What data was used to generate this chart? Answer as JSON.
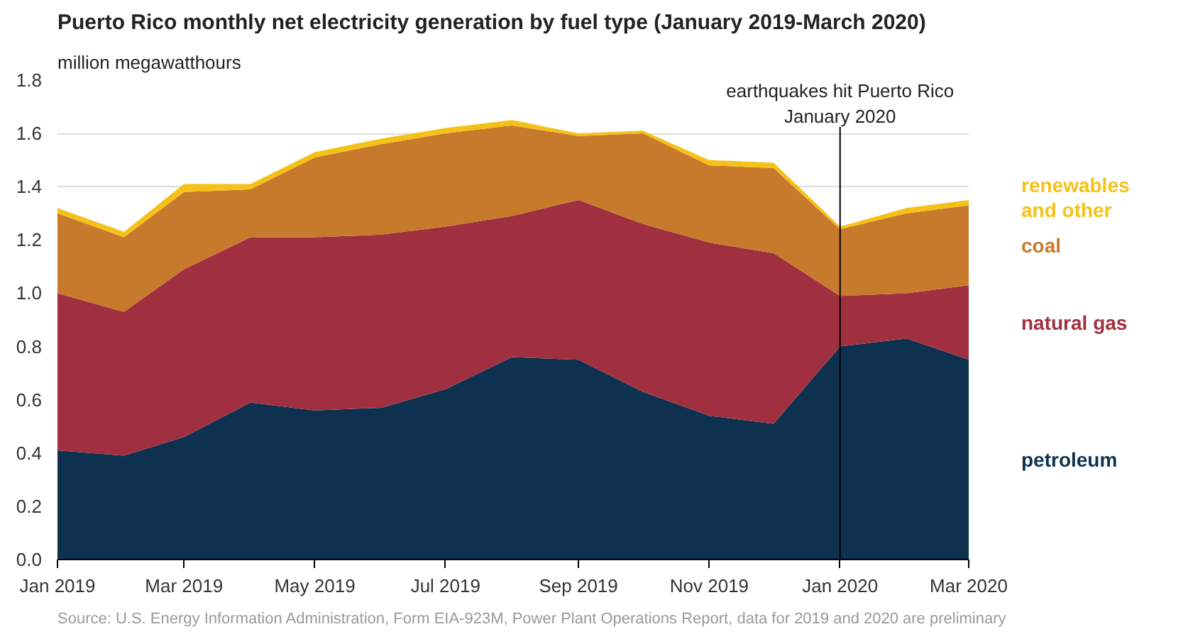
{
  "chart_data": {
    "type": "area",
    "stacked": true,
    "title": "Puerto Rico monthly net electricity generation by fuel type (January 2019-March 2020)",
    "ylabel": "million megawatthours",
    "x": [
      "2019-01",
      "2019-02",
      "2019-03",
      "2019-04",
      "2019-05",
      "2019-06",
      "2019-07",
      "2019-08",
      "2019-09",
      "2019-10",
      "2019-11",
      "2019-12",
      "2020-01",
      "2020-02",
      "2020-03"
    ],
    "series": [
      {
        "name": "petroleum",
        "color": "#0e3150",
        "values": [
          0.41,
          0.39,
          0.46,
          0.59,
          0.56,
          0.57,
          0.64,
          0.76,
          0.75,
          0.63,
          0.54,
          0.51,
          0.8,
          0.83,
          0.75
        ]
      },
      {
        "name": "natural gas",
        "color": "#a0303f",
        "values": [
          0.59,
          0.54,
          0.63,
          0.62,
          0.65,
          0.65,
          0.61,
          0.53,
          0.6,
          0.63,
          0.65,
          0.64,
          0.19,
          0.17,
          0.28
        ]
      },
      {
        "name": "coal",
        "color": "#c87a2c",
        "values": [
          0.3,
          0.28,
          0.29,
          0.18,
          0.3,
          0.34,
          0.35,
          0.34,
          0.24,
          0.34,
          0.29,
          0.32,
          0.25,
          0.3,
          0.3
        ]
      },
      {
        "name": "renewables and other",
        "color": "#f5c117",
        "values": [
          0.02,
          0.02,
          0.03,
          0.02,
          0.02,
          0.02,
          0.02,
          0.02,
          0.01,
          0.01,
          0.02,
          0.02,
          0.01,
          0.02,
          0.02
        ]
      }
    ],
    "xlim": [
      "2019-01",
      "2020-03"
    ],
    "xticks": [
      {
        "value": "2019-01",
        "label": "Jan 2019"
      },
      {
        "value": "2019-03",
        "label": "Mar 2019"
      },
      {
        "value": "2019-05",
        "label": "May 2019"
      },
      {
        "value": "2019-07",
        "label": "Jul 2019"
      },
      {
        "value": "2019-09",
        "label": "Sep 2019"
      },
      {
        "value": "2019-11",
        "label": "Nov 2019"
      },
      {
        "value": "2020-01",
        "label": "Jan 2020"
      },
      {
        "value": "2020-03",
        "label": "Mar 2020"
      }
    ],
    "ylim": [
      0,
      1.8
    ],
    "yticks": [
      {
        "value": 0,
        "label": "0.0"
      },
      0.2,
      0.4,
      0.6,
      0.8,
      {
        "value": 1,
        "label": "1.0"
      },
      1.2,
      1.4,
      1.6,
      1.8
    ],
    "grid": "y",
    "legend": "right",
    "ref_lines": [
      {
        "axis": "x",
        "value": "2020-01",
        "label": "earthquakes hit Puerto Rico\nJanuary 2020",
        "color": "#000000"
      }
    ],
    "annotations": [
      "Source: U.S. Energy Information Administration, Form EIA-923M, Power Plant Operations Report, data for 2019 and 2020 are preliminary"
    ]
  }
}
